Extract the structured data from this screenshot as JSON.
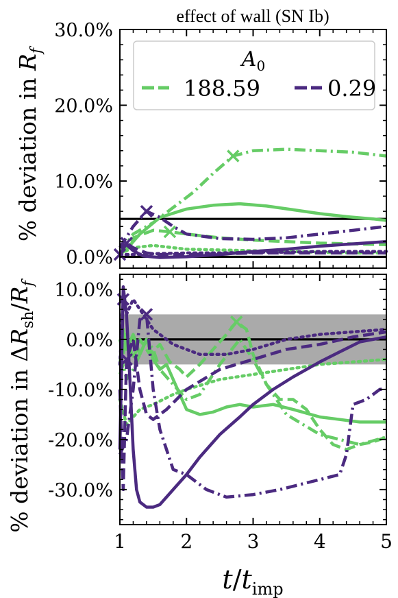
{
  "chart_data": [
    {
      "type": "line",
      "title": "effect of wall (SN Ib)",
      "ylabel": "% deviation in R_f",
      "xlabel": "",
      "xlim": [
        1,
        5
      ],
      "ylim": [
        -1.5,
        30.0
      ],
      "yticks": [
        0,
        10,
        20,
        30
      ],
      "ytick_labels": [
        "0.0%",
        "10.0%",
        "20.0%",
        "30.0%"
      ],
      "reference_lines": [
        0,
        5
      ],
      "legend": {
        "title": "A_0",
        "placement": "top",
        "entries": [
          {
            "label": "188.59",
            "color": "#66cc66"
          },
          {
            "label": "0.29",
            "color": "#4b2a80"
          }
        ]
      },
      "series": [
        {
          "group": "188.59",
          "color": "#66cc66",
          "style": "solid",
          "x": [
            1.0,
            1.1,
            1.3,
            1.6,
            2.0,
            2.4,
            2.8,
            3.2,
            3.6,
            4.0,
            4.4,
            4.8,
            5.0
          ],
          "y": [
            0.3,
            1.0,
            3.0,
            5.2,
            6.3,
            6.8,
            7.0,
            6.7,
            6.2,
            5.7,
            5.3,
            5.0,
            4.8
          ]
        },
        {
          "group": "188.59",
          "color": "#66cc66",
          "style": "dashdot",
          "marker_at": 2.7,
          "x": [
            1.0,
            1.2,
            1.5,
            1.8,
            2.1,
            2.4,
            2.7,
            3.0,
            3.5,
            4.0,
            4.5,
            5.0
          ],
          "y": [
            0.5,
            3.0,
            4.5,
            6.5,
            8.5,
            11.0,
            13.3,
            14.0,
            14.2,
            14.0,
            13.8,
            13.3
          ]
        },
        {
          "group": "188.59",
          "color": "#66cc66",
          "style": "dashed",
          "marker_at": 1.75,
          "x": [
            1.0,
            1.2,
            1.5,
            1.75,
            2.0,
            2.5,
            3.0,
            3.5,
            4.0,
            4.5,
            5.0
          ],
          "y": [
            0.5,
            2.5,
            3.5,
            3.3,
            3.0,
            2.5,
            2.2,
            2.0,
            1.8,
            1.7,
            1.6
          ]
        },
        {
          "group": "188.59",
          "color": "#66cc66",
          "style": "dotted",
          "x": [
            1.0,
            1.2,
            1.5,
            2.0,
            2.5,
            3.0,
            3.5,
            4.0,
            4.5,
            5.0
          ],
          "y": [
            0.4,
            1.2,
            1.5,
            1.0,
            0.9,
            0.8,
            0.7,
            0.6,
            0.5,
            0.5
          ]
        },
        {
          "group": "0.29",
          "color": "#4b2a80",
          "style": "solid",
          "x": [
            1.0,
            1.1,
            1.2,
            1.35,
            1.6,
            2.0,
            2.5,
            3.0,
            3.5,
            4.0,
            4.5,
            5.0
          ],
          "y": [
            1.5,
            1.6,
            0.8,
            0.1,
            -0.1,
            0.0,
            0.3,
            0.7,
            1.0,
            1.4,
            1.7,
            2.0
          ]
        },
        {
          "group": "0.29",
          "color": "#4b2a80",
          "style": "dashdot",
          "marker_at": 1.4,
          "x": [
            1.0,
            1.2,
            1.4,
            1.6,
            1.8,
            2.0,
            2.5,
            3.0,
            3.5,
            4.0,
            4.5,
            5.0
          ],
          "y": [
            1.2,
            4.0,
            6.0,
            5.2,
            4.0,
            3.0,
            2.4,
            2.3,
            2.5,
            3.0,
            3.5,
            4.0
          ]
        },
        {
          "group": "0.29",
          "color": "#4b2a80",
          "style": "dashed",
          "marker_at": 1.1,
          "x": [
            1.0,
            1.1,
            1.2,
            1.4,
            1.6,
            2.0,
            2.5,
            3.0,
            3.5,
            4.0,
            4.5,
            5.0
          ],
          "y": [
            0.2,
            1.8,
            1.2,
            0.5,
            0.3,
            0.3,
            0.4,
            0.5,
            0.5,
            0.5,
            0.5,
            0.5
          ]
        },
        {
          "group": "0.29",
          "color": "#4b2a80",
          "style": "dotted",
          "marker_at": 1.0,
          "x": [
            1.0,
            1.2,
            1.5,
            2.0,
            2.5,
            3.0,
            3.5,
            4.0,
            4.5,
            5.0
          ],
          "y": [
            0.3,
            0.3,
            0.4,
            0.5,
            0.5,
            0.6,
            0.6,
            0.7,
            0.7,
            0.7
          ]
        }
      ]
    },
    {
      "type": "line",
      "title": "",
      "ylabel": "% deviation in ΔR_sh/R_f",
      "xlabel": "t/t_imp",
      "xlim": [
        1,
        5
      ],
      "ylim": [
        -37.0,
        13.0
      ],
      "xticks": [
        1,
        2,
        3,
        4,
        5
      ],
      "xtick_labels": [
        "1",
        "2",
        "3",
        "4",
        "5"
      ],
      "yticks": [
        -30,
        -20,
        -10,
        0,
        10
      ],
      "ytick_labels": [
        "-30.0%",
        "-20.0%",
        "-10.0%",
        "0.0%",
        "10.0%"
      ],
      "reference_lines": [
        0
      ],
      "shaded_band": [
        -5,
        5
      ],
      "series": [
        {
          "group": "188.59",
          "color": "#66cc66",
          "style": "solid",
          "x": [
            1.0,
            1.05,
            1.1,
            1.2,
            1.3,
            1.4,
            1.5,
            1.6,
            1.7,
            1.8,
            1.9,
            2.0,
            2.2,
            2.4,
            2.6,
            2.8,
            3.0,
            3.3,
            3.6,
            4.0,
            4.3,
            4.6,
            5.0
          ],
          "y": [
            -5.0,
            2.0,
            -2.0,
            1.0,
            -3.0,
            0.0,
            -4.0,
            -6.0,
            -5.0,
            -8.0,
            -11.0,
            -14.0,
            -15.0,
            -14.5,
            -13.5,
            -13.0,
            -13.5,
            -13.0,
            -14.0,
            -15.5,
            -16.0,
            -16.5,
            -16.5
          ]
        },
        {
          "group": "188.59",
          "color": "#66cc66",
          "style": "dashdot",
          "x": [
            1.0,
            1.05,
            1.1,
            1.2,
            1.3,
            1.4,
            1.5,
            1.6,
            1.8,
            2.0,
            2.2,
            2.5,
            2.8,
            3.0,
            3.2,
            3.5,
            4.0,
            4.3,
            4.6,
            5.0
          ],
          "y": [
            -7.0,
            -5.0,
            -8.0,
            -6.0,
            -3.0,
            0.0,
            -2.0,
            -6.0,
            -9.0,
            -12.0,
            -11.0,
            -5.0,
            0.0,
            -4.0,
            -9.0,
            -15.0,
            -19.0,
            -20.0,
            -21.0,
            -19.5
          ]
        },
        {
          "group": "188.59",
          "color": "#66cc66",
          "style": "dashed",
          "marker_at": 2.75,
          "x": [
            1.0,
            1.05,
            1.1,
            1.2,
            1.3,
            1.45,
            1.6,
            1.75,
            1.9,
            2.0,
            2.2,
            2.4,
            2.6,
            2.75,
            2.9,
            3.0,
            3.2,
            3.4,
            3.6,
            3.8,
            4.0,
            4.2,
            4.4,
            4.6,
            4.8,
            5.0
          ],
          "y": [
            0.0,
            -3.0,
            1.0,
            -4.0,
            0.0,
            -3.0,
            -1.0,
            -4.5,
            -6.0,
            -7.5,
            -5.0,
            -2.0,
            1.0,
            3.5,
            2.0,
            -3.0,
            -9.0,
            -12.0,
            -12.0,
            -14.0,
            -18.0,
            -21.0,
            -22.0,
            -21.0,
            -20.5,
            -19.5
          ]
        },
        {
          "group": "188.59",
          "color": "#66cc66",
          "style": "dotted",
          "x": [
            1.0,
            1.1,
            1.3,
            1.5,
            1.8,
            2.0,
            2.5,
            3.0,
            3.5,
            4.0,
            4.5,
            5.0
          ],
          "y": [
            -12.0,
            -17.0,
            -14.0,
            -13.0,
            -11.0,
            -10.0,
            -8.0,
            -7.0,
            -6.0,
            -5.0,
            -4.5,
            -4.0
          ]
        },
        {
          "group": "0.29",
          "color": "#4b2a80",
          "style": "solid",
          "x": [
            1.0,
            1.05,
            1.1,
            1.15,
            1.2,
            1.25,
            1.3,
            1.4,
            1.5,
            1.6,
            1.8,
            2.0,
            2.2,
            2.5,
            2.8,
            3.0,
            3.3,
            3.6,
            4.0,
            4.3,
            4.6,
            5.0
          ],
          "y": [
            -22.0,
            10.5,
            5.0,
            -8.0,
            -22.0,
            -30.0,
            -32.5,
            -33.5,
            -33.5,
            -33.0,
            -30.0,
            -27.0,
            -23.5,
            -19.0,
            -15.5,
            -13.0,
            -10.0,
            -7.5,
            -4.5,
            -2.5,
            -0.5,
            0.5
          ]
        },
        {
          "group": "0.29",
          "color": "#4b2a80",
          "style": "dashdot",
          "marker_at": 1.4,
          "x": [
            1.0,
            1.1,
            1.2,
            1.3,
            1.4,
            1.5,
            1.6,
            1.7,
            1.8,
            2.0,
            2.3,
            2.6,
            3.0,
            3.4,
            4.0,
            4.3,
            4.4,
            4.5,
            4.7,
            4.9,
            5.0
          ],
          "y": [
            -23.0,
            -20.0,
            -10.0,
            4.0,
            5.0,
            -10.0,
            -18.0,
            -22.0,
            -26.0,
            -27.0,
            -30.0,
            -31.5,
            -31.0,
            -30.0,
            -28.0,
            -27.0,
            -23.0,
            -13.0,
            -12.0,
            -10.0,
            -9.8
          ]
        },
        {
          "group": "0.29",
          "color": "#4b2a80",
          "style": "dashed",
          "marker_at": 1.1,
          "x": [
            1.0,
            1.05,
            1.1,
            1.2,
            1.3,
            1.4,
            1.5,
            1.7,
            2.0,
            2.5,
            3.0,
            3.5,
            4.0,
            4.5,
            5.0
          ],
          "y": [
            -10.0,
            -30.0,
            -4.0,
            0.0,
            -10.0,
            -15.0,
            -16.0,
            -14.0,
            -10.0,
            -6.0,
            -4.0,
            -2.0,
            -1.0,
            0.5,
            1.5
          ]
        },
        {
          "group": "0.29",
          "color": "#4b2a80",
          "style": "dotted",
          "marker_at": 1.05,
          "x": [
            1.0,
            1.05,
            1.1,
            1.2,
            1.3,
            1.5,
            1.8,
            2.2,
            2.6,
            3.0,
            3.5,
            4.0,
            4.5,
            5.0
          ],
          "y": [
            -5.0,
            8.0,
            5.0,
            8.0,
            6.0,
            2.0,
            -1.0,
            -3.0,
            -3.0,
            -2.0,
            0.0,
            1.0,
            1.5,
            2.0
          ]
        }
      ]
    }
  ]
}
